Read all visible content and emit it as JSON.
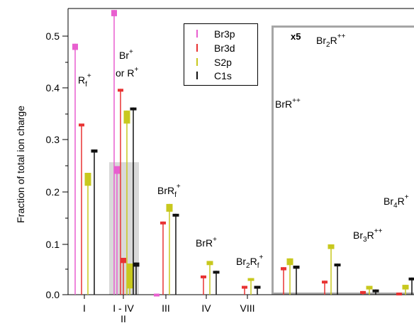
{
  "chart_data": {
    "type": "bar",
    "ylabel": "Fraction of total ion charge",
    "ylim": [
      0,
      0.55
    ],
    "y_ticks": [
      "0.0",
      "0.1",
      "0.2",
      "0.3",
      "0.4",
      "0.5"
    ],
    "x_ticks": [
      {
        "label": "I",
        "x": 1
      },
      {
        "label": "I - IV",
        "label2": "II",
        "x": 2
      },
      {
        "label": "III",
        "x": 3
      },
      {
        "label": "IV",
        "x": 4
      },
      {
        "label": "VIII",
        "x": 5
      }
    ],
    "legend": {
      "placement": "top-center",
      "entries": [
        {
          "name": "Br3p",
          "color": "#e85fcf"
        },
        {
          "name": "Br3d",
          "color": "#e83232"
        },
        {
          "name": "S2p",
          "color": "#c8c81e"
        },
        {
          "name": "C1s",
          "color": "#111111"
        }
      ]
    },
    "inset": {
      "label": "x5",
      "scale_factor": 5
    },
    "series": [
      {
        "name": "Br3p",
        "color": "#e85fcf",
        "values": [
          {
            "x": 1,
            "y": 0.478,
            "lo": 0.472,
            "hi": 0.484
          },
          {
            "x": 2,
            "y": 0.543,
            "lo": 0.537,
            "hi": 0.549
          },
          {
            "x": 2,
            "y": 0.24,
            "lo": 0.233,
            "hi": 0.248
          },
          {
            "x": 3,
            "y": 0.0,
            "lo": -0.002,
            "hi": 0.002
          }
        ]
      },
      {
        "name": "Br3d",
        "color": "#e83232",
        "values": [
          {
            "x": 1,
            "y": 0.328,
            "lo": 0.326,
            "hi": 0.33
          },
          {
            "x": 2,
            "y": 0.395,
            "lo": 0.393,
            "hi": 0.397
          },
          {
            "x": 2,
            "y": 0.066,
            "lo": 0.061,
            "hi": 0.071
          },
          {
            "x": 3,
            "y": 0.14,
            "lo": 0.139,
            "hi": 0.141
          },
          {
            "x": 4,
            "y": 0.036,
            "lo": 0.035,
            "hi": 0.037
          },
          {
            "x": 5,
            "y": 0.016,
            "lo": 0.015,
            "hi": 0.017
          },
          {
            "x": 6,
            "y": 0.05,
            "lo": 0.047,
            "hi": 0.053
          },
          {
            "x": 7,
            "y": 0.026,
            "lo": 0.025,
            "hi": 0.027
          },
          {
            "x": 8,
            "y": 0.005,
            "lo": 0.003,
            "hi": 0.007
          },
          {
            "x": 9,
            "y": 0.003,
            "lo": 0.002,
            "hi": 0.004
          }
        ]
      },
      {
        "name": "S2p",
        "color": "#c8c81e",
        "values": [
          {
            "x": 1,
            "y": 0.221,
            "lo": 0.21,
            "hi": 0.235
          },
          {
            "x": 2,
            "y": 0.343,
            "lo": 0.33,
            "hi": 0.355
          },
          {
            "x": 2,
            "y": 0.038,
            "lo": 0.012,
            "hi": 0.06
          },
          {
            "x": 3,
            "y": 0.167,
            "lo": 0.16,
            "hi": 0.175
          },
          {
            "x": 4,
            "y": 0.061,
            "lo": 0.057,
            "hi": 0.065
          },
          {
            "x": 5,
            "y": 0.03,
            "lo": 0.028,
            "hi": 0.032
          },
          {
            "x": 6,
            "y": 0.063,
            "lo": 0.057,
            "hi": 0.07
          },
          {
            "x": 7,
            "y": 0.092,
            "lo": 0.088,
            "hi": 0.097
          },
          {
            "x": 8,
            "y": 0.014,
            "lo": 0.01,
            "hi": 0.017
          },
          {
            "x": 9,
            "y": 0.015,
            "lo": 0.01,
            "hi": 0.019
          }
        ]
      },
      {
        "name": "C1s",
        "color": "#111111",
        "values": [
          {
            "x": 1,
            "y": 0.277,
            "lo": 0.274,
            "hi": 0.28
          },
          {
            "x": 2,
            "y": 0.359,
            "lo": 0.357,
            "hi": 0.361
          },
          {
            "x": 2,
            "y": 0.058,
            "lo": 0.054,
            "hi": 0.062
          },
          {
            "x": 3,
            "y": 0.154,
            "lo": 0.152,
            "hi": 0.156
          },
          {
            "x": 4,
            "y": 0.045,
            "lo": 0.044,
            "hi": 0.046
          },
          {
            "x": 5,
            "y": 0.016,
            "lo": 0.015,
            "hi": 0.017
          },
          {
            "x": 6,
            "y": 0.053,
            "lo": 0.05,
            "hi": 0.056
          },
          {
            "x": 7,
            "y": 0.057,
            "lo": 0.055,
            "hi": 0.06
          },
          {
            "x": 8,
            "y": 0.008,
            "lo": 0.007,
            "hi": 0.01
          },
          {
            "x": 9,
            "y": 0.031,
            "lo": 0.03,
            "hi": 0.033
          }
        ]
      }
    ],
    "annotations": [
      {
        "text": "R",
        "sub": "f",
        "sup": "+"
      },
      {
        "text": "Br",
        "sup": "+",
        "line2": "or R",
        "sup2": "+"
      },
      {
        "text": "BrR",
        "sub": "f",
        "sup": "+"
      },
      {
        "text": "BrR",
        "sup": "+"
      },
      {
        "text": "Br",
        "sub": "2",
        "text2": "R",
        "sub2": "f",
        "sup": "+"
      },
      {
        "text": "BrR",
        "sup": "++"
      },
      {
        "text": "Br",
        "sub": "2",
        "text2": "R",
        "sup": "++"
      },
      {
        "text": "Br",
        "sub": "3",
        "text2": "R",
        "sup": "++"
      },
      {
        "text": "Br",
        "sub": "4",
        "text2": "R",
        "sup": "+"
      }
    ]
  }
}
